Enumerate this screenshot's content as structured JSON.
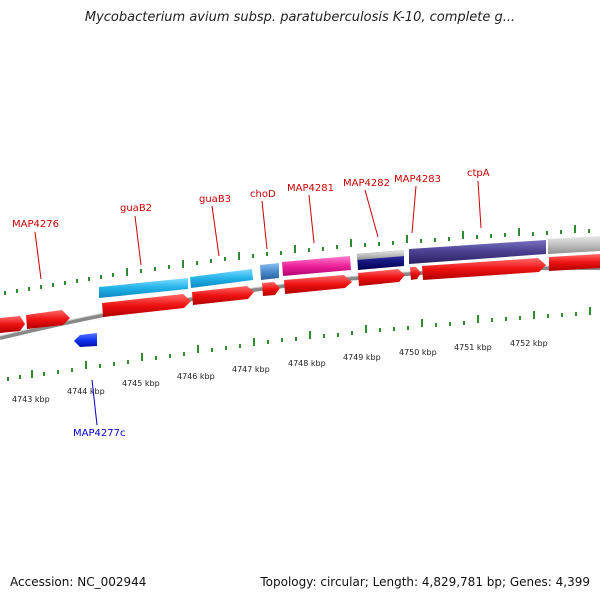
{
  "title": "Mycobacterium avium subsp. paratuberculosis K-10, complete g...",
  "accession_text": "Accession: NC_002944",
  "footer_text": "Topology: circular; Length: 4,829,781 bp; Genes: 4,399",
  "colors": {
    "forward_label": "#cc0000",
    "reverse_label": "#0000cc",
    "cds_arrow": "#ee1111",
    "backbone": "#888888",
    "tick": "#2e8b2e"
  },
  "kbp_labels": [
    "4743 kbp",
    "4744 kbp",
    "4745 kbp",
    "4746 kbp",
    "4747 kbp",
    "4748 kbp",
    "4749 kbp",
    "4750 kbp",
    "4751 kbp",
    "4752 kbp"
  ],
  "forward_genes": [
    {
      "label": "MAP4276",
      "color": "#ee1111"
    },
    {
      "label": "guaB2",
      "color": "#22b2e8"
    },
    {
      "label": "guaB3",
      "color": "#22b2e8"
    },
    {
      "label": "choD",
      "color": "#4a8ccc"
    },
    {
      "label": "MAP4281",
      "color": "#ee2299"
    },
    {
      "label": "MAP4282",
      "color": "#1a1a88"
    },
    {
      "label": "MAP4283",
      "color": "#ee1111"
    },
    {
      "label": "ctpA",
      "color": "#4a3f8f"
    }
  ],
  "reverse_genes": [
    {
      "label": "MAP4277c",
      "color": "#1133ee"
    }
  ]
}
